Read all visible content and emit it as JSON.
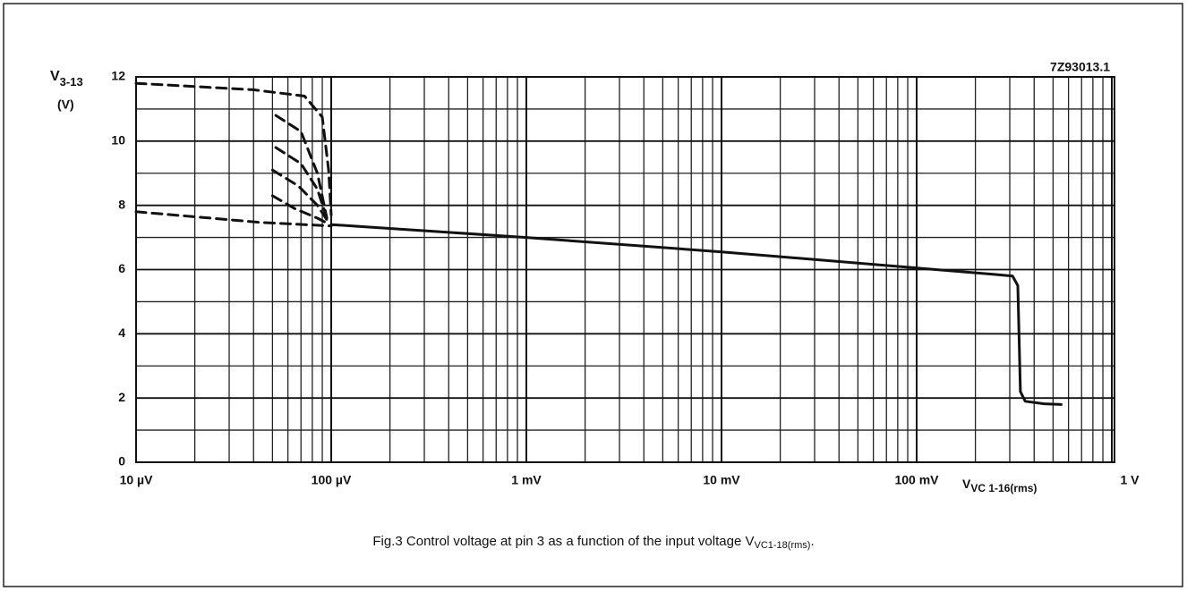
{
  "chart_data": {
    "type": "line",
    "code": "7Z93013.1",
    "y_label": {
      "main": "V",
      "sub": "3-13",
      "unit": "(V)"
    },
    "x_label": {
      "main": "V",
      "sub": "VC 1-16(rms)"
    },
    "caption": {
      "main": "Fig.3  Control voltage at pin 3 as a function of the input voltage V",
      "sub": "VC1-18(rms)",
      "end": "."
    },
    "log_x": true,
    "grid": true,
    "xlim": [
      1e-05,
      1
    ],
    "xticks": [
      {
        "value": 1e-05,
        "label": "10 µV"
      },
      {
        "value": 0.0001,
        "label": "100 µV"
      },
      {
        "value": 0.001,
        "label": "1 mV"
      },
      {
        "value": 0.01,
        "label": "10 mV"
      },
      {
        "value": 0.1,
        "label": "100 mV"
      },
      {
        "value": 1,
        "label": "1 V"
      }
    ],
    "ylim": [
      0,
      12
    ],
    "yticks": [
      0,
      2,
      4,
      6,
      8,
      10,
      12
    ],
    "series": [
      {
        "color": "#111111",
        "style": "solid",
        "x": [
          0.0001,
          0.001,
          0.01,
          0.1,
          0.25,
          0.31,
          0.33,
          0.34,
          0.36,
          0.45,
          0.55
        ],
        "values": [
          7.4,
          7.0,
          6.55,
          6.05,
          5.85,
          5.8,
          5.5,
          2.2,
          1.9,
          1.82,
          1.8
        ]
      },
      {
        "color": "#111111",
        "style": "dashed",
        "x": [
          1e-05,
          4e-05,
          7.3e-05,
          9e-05,
          9.7e-05,
          0.0001
        ],
        "values": [
          11.8,
          11.6,
          11.4,
          10.75,
          9.1,
          7.7
        ]
      },
      {
        "color": "#111111",
        "style": "dashed",
        "x": [
          5.2e-05,
          7e-05,
          8.5e-05,
          9.5e-05
        ],
        "values": [
          10.8,
          10.3,
          9.0,
          7.6
        ]
      },
      {
        "color": "#111111",
        "style": "dashed",
        "x": [
          5.2e-05,
          7e-05,
          8.5e-05,
          9.5e-05
        ],
        "values": [
          9.8,
          9.3,
          8.5,
          7.6
        ]
      },
      {
        "color": "#111111",
        "style": "dashed",
        "x": [
          5e-05,
          6.8e-05,
          8.5e-05,
          9.5e-05
        ],
        "values": [
          9.1,
          8.6,
          8.0,
          7.55
        ]
      },
      {
        "color": "#111111",
        "style": "dashed",
        "x": [
          5e-05,
          6.5e-05,
          8.5e-05,
          9.5e-05
        ],
        "values": [
          8.3,
          7.9,
          7.6,
          7.45
        ]
      },
      {
        "color": "#111111",
        "style": "dashed",
        "x": [
          1e-05,
          4.3e-05,
          0.0001
        ],
        "values": [
          7.8,
          7.47,
          7.36
        ]
      }
    ]
  }
}
